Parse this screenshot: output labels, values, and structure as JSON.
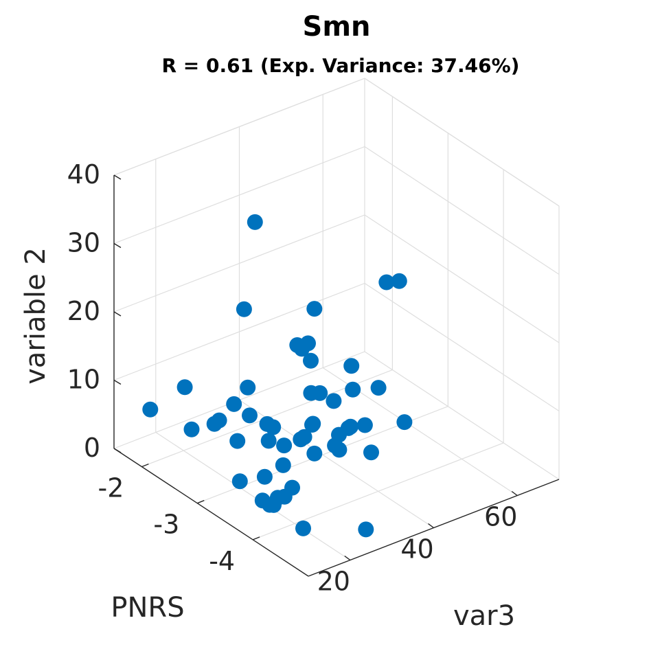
{
  "chart_data": {
    "type": "scatter",
    "title": "Smn",
    "subtitle": "R = 0.61 (Exp. Variance: 37.46%)",
    "xlabel": "var3",
    "ylabel": "PNRS",
    "zlabel": "variable 2",
    "xlim": [
      10,
      70
    ],
    "ylim": [
      -5,
      -1.5
    ],
    "zlim": [
      0,
      40
    ],
    "x_ticks": [
      "20",
      "40",
      "60"
    ],
    "y_ticks": [
      "-2",
      "-3",
      "-4"
    ],
    "z_ticks": [
      "0",
      "10",
      "20",
      "30",
      "40"
    ],
    "grid": true,
    "point_color": "#0072bd",
    "series": [
      {
        "points": [
          {
            "x": 14.7,
            "y": -1.8,
            "z": 6.2
          },
          {
            "x": 20.3,
            "y": -2.0,
            "z": 9.2
          },
          {
            "x": 23.2,
            "y": -2.4,
            "z": 5.8
          },
          {
            "x": 20.6,
            "y": -2.1,
            "z": 3.5
          },
          {
            "x": 23.4,
            "y": -2.3,
            "z": 4.7
          },
          {
            "x": 30.5,
            "y": -2.3,
            "z": 19.8
          },
          {
            "x": 32.7,
            "y": -2.2,
            "z": 7.3
          },
          {
            "x": 33.4,
            "y": -1.9,
            "z": 3.1
          },
          {
            "x": 30.7,
            "y": -2.7,
            "z": 5.1
          },
          {
            "x": 30.5,
            "y": -2.4,
            "z": 4.8
          },
          {
            "x": 28.9,
            "y": -2.3,
            "z": 0.9
          },
          {
            "x": 34.8,
            "y": -2.5,
            "z": 2.6
          },
          {
            "x": 32.4,
            "y": -2.6,
            "z": 1.7
          },
          {
            "x": 32.1,
            "y": -2.9,
            "z": 2.7
          },
          {
            "x": 27.9,
            "y": -3.2,
            "z": 2.4
          },
          {
            "x": 27.4,
            "y": -3.4,
            "z": 0.3
          },
          {
            "x": 24.8,
            "y": -3.1,
            "z": 0.9
          },
          {
            "x": 22.9,
            "y": -3.6,
            "z": 1.1
          },
          {
            "x": 20.2,
            "y": -3.0,
            "z": 0.8
          },
          {
            "x": 22.6,
            "y": -3.5,
            "z": 0.5
          },
          {
            "x": 20.3,
            "y": -3.4,
            "z": 0.1
          },
          {
            "x": 19.4,
            "y": -4.2,
            "z": 0.5
          },
          {
            "x": 20.7,
            "y": -3.5,
            "z": -0.1
          },
          {
            "x": 20.3,
            "y": -3.6,
            "z": 0.5
          },
          {
            "x": 36.7,
            "y": -3.1,
            "z": 1.5
          },
          {
            "x": 41.3,
            "y": -3.2,
            "z": 1.5
          },
          {
            "x": 41.6,
            "y": -3.1,
            "z": 1.5
          },
          {
            "x": 46.3,
            "y": -3.4,
            "z": 1.0
          },
          {
            "x": 37.4,
            "y": -2.8,
            "z": 1.8
          },
          {
            "x": 39.6,
            "y": -2.7,
            "z": 1.1
          },
          {
            "x": 48.8,
            "y": -3.1,
            "z": 2.8
          },
          {
            "x": 47.5,
            "y": -2.9,
            "z": 1.6
          },
          {
            "x": 48.0,
            "y": -2.9,
            "z": 1.7
          },
          {
            "x": 43.9,
            "y": -3.0,
            "z": 2.0
          },
          {
            "x": 42.8,
            "y": -2.6,
            "z": 1.6
          },
          {
            "x": 43.0,
            "y": -2.6,
            "z": 1.7
          },
          {
            "x": 47.3,
            "y": -2.4,
            "z": 4.1
          },
          {
            "x": 49.3,
            "y": -2.5,
            "z": 3.0
          },
          {
            "x": 45.2,
            "y": -2.4,
            "z": 4.6
          },
          {
            "x": 54.7,
            "y": -2.9,
            "z": 5.8
          },
          {
            "x": 55.6,
            "y": -3.3,
            "z": 2.7
          },
          {
            "x": 51.2,
            "y": -2.7,
            "z": 5.3
          },
          {
            "x": 52.2,
            "y": -2.6,
            "z": 8.0
          },
          {
            "x": 43.0,
            "y": -2.4,
            "z": 11.6
          },
          {
            "x": 43.8,
            "y": -2.5,
            "z": 10.2
          },
          {
            "x": 41.9,
            "y": -2.4,
            "z": 12.4
          },
          {
            "x": 50.0,
            "y": -2.1,
            "z": 14.2
          },
          {
            "x": 45.8,
            "y": -2.3,
            "z": 11.2
          },
          {
            "x": 37.1,
            "y": -2.0,
            "z": 29.4
          },
          {
            "x": 64.6,
            "y": -2.3,
            "z": 15.7
          },
          {
            "x": 66.3,
            "y": -2.4,
            "z": 16.0
          },
          {
            "x": 29.1,
            "y": -4.6,
            "z": 0.2
          }
        ]
      }
    ]
  }
}
